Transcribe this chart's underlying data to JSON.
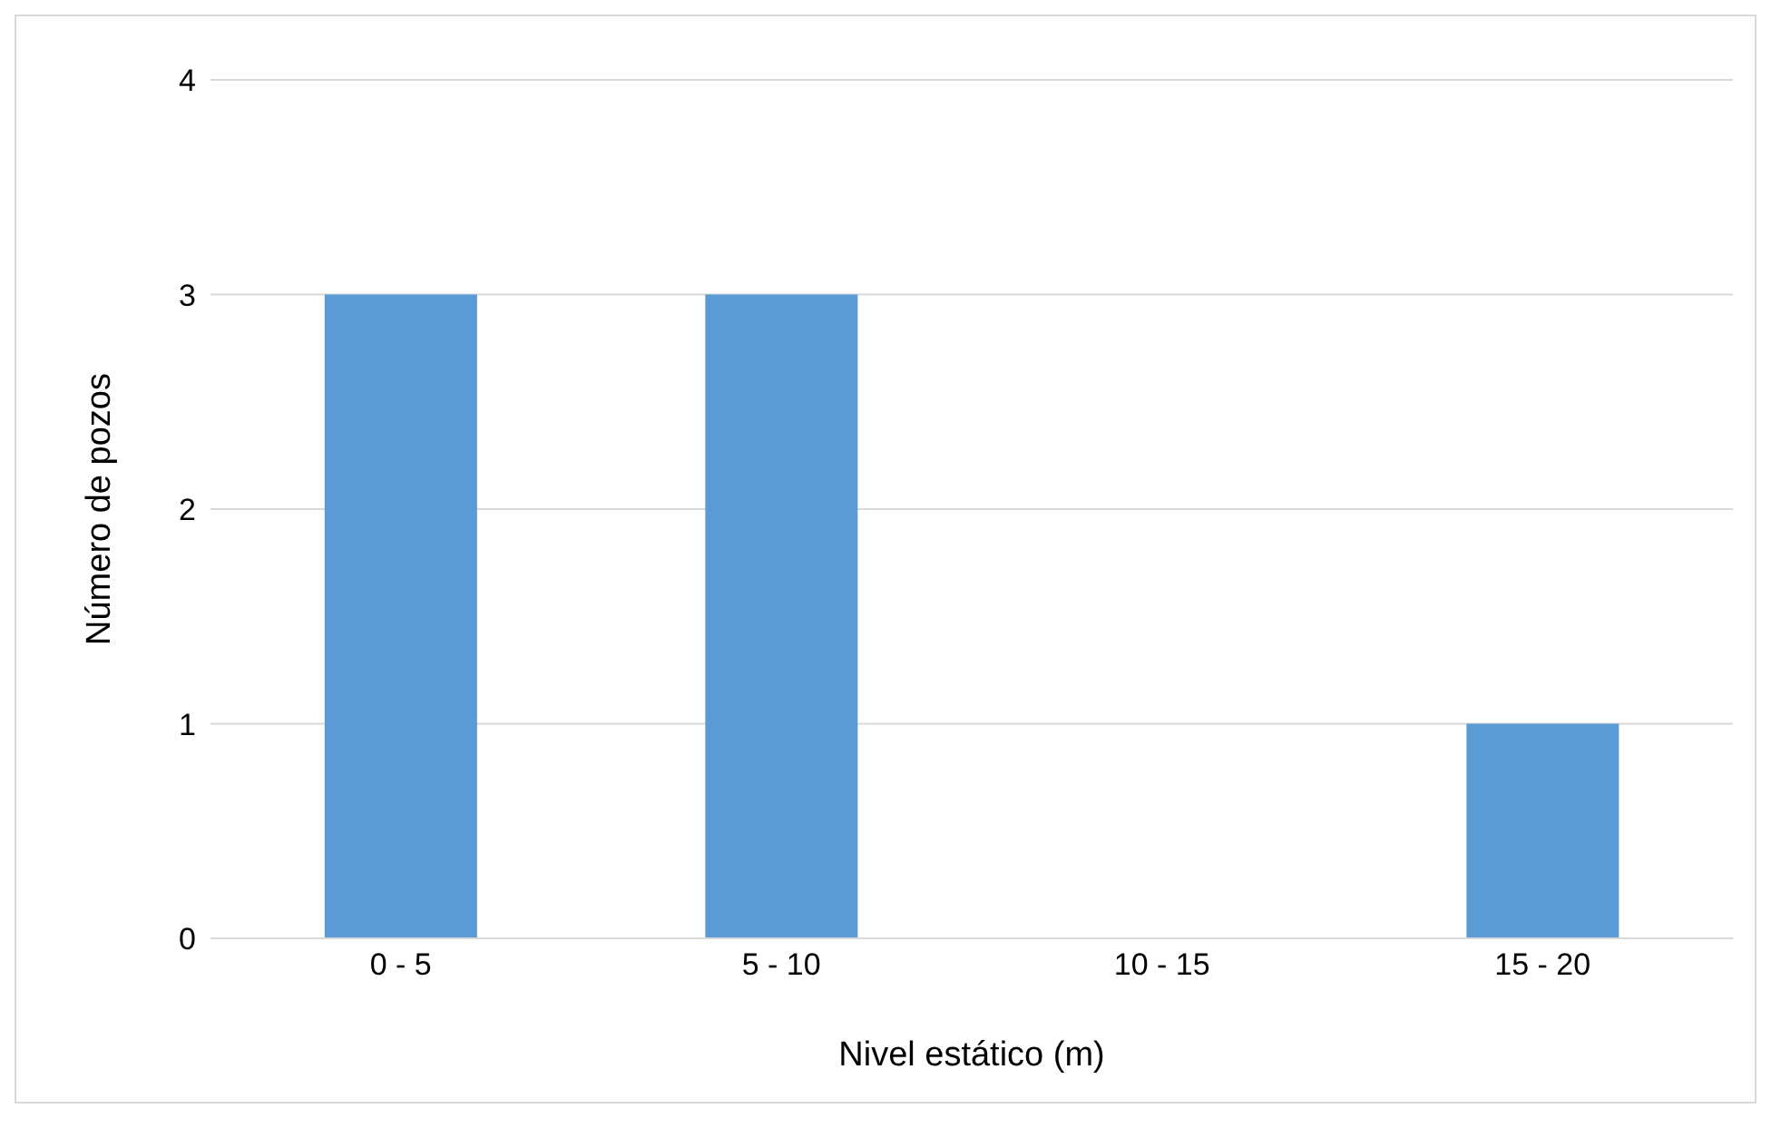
{
  "chart_data": {
    "type": "bar",
    "xlabel": "Nivel estático (m)",
    "ylabel": "Número de pozos",
    "categories": [
      "0 - 5",
      "5 - 10",
      "10 - 15",
      "15 - 20"
    ],
    "values": [
      3,
      3,
      0,
      1
    ],
    "color": "#5b9bd5",
    "ylim": [
      0,
      4
    ],
    "yticks": [
      0,
      1,
      2,
      3,
      4
    ],
    "grid": "y"
  }
}
